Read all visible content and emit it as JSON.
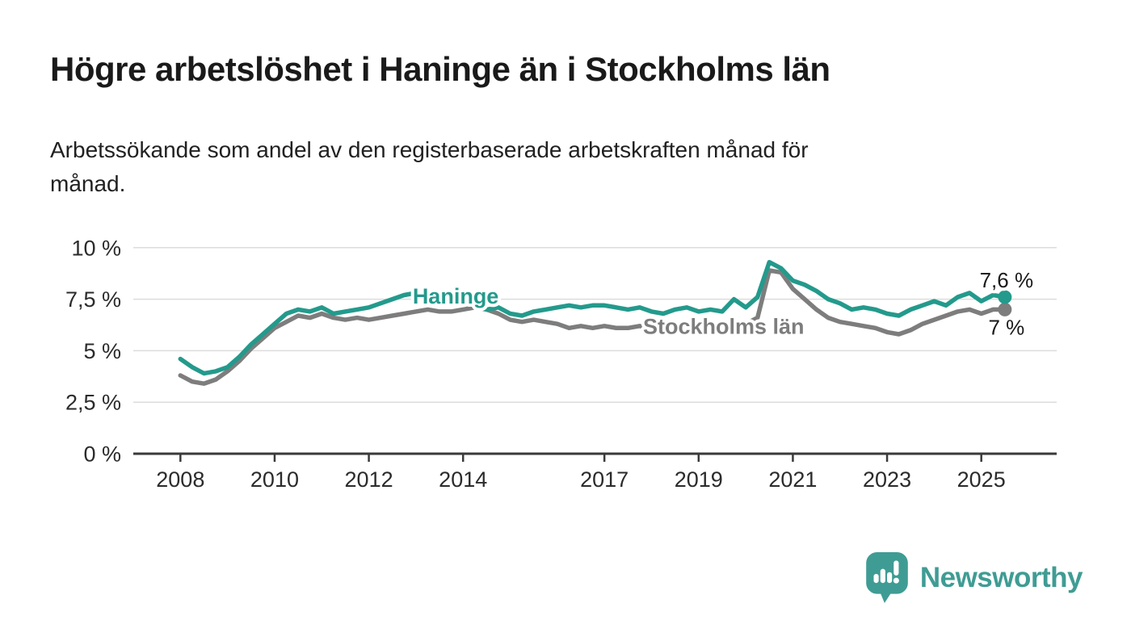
{
  "header": {
    "title": "Högre arbetslöshet i Haninge än i Stockholms län",
    "subtitle": "Arbetssökande som andel av den registerbaserade arbetskraften månad för månad."
  },
  "colors": {
    "haninge": "#239a8c",
    "stockholm": "#7d7d7d",
    "grid": "#dcdcdc",
    "axis": "#3a3a3a",
    "tick_text": "#2b2b2b",
    "annotation_text": "#1a1a1a",
    "brand": "#3f9c94"
  },
  "chart_data": {
    "type": "line",
    "x_start": 2008.0,
    "x_step": 0.25,
    "xlim": [
      2007.0,
      2026.6
    ],
    "ylim": [
      0,
      11.05
    ],
    "grid": "horizontal-only",
    "yticks": [
      {
        "value": 10,
        "label": "10 %"
      },
      {
        "value": 7.5,
        "label": "7,5 %"
      },
      {
        "value": 5,
        "label": "5 %"
      },
      {
        "value": 2.5,
        "label": "2,5 %"
      },
      {
        "value": 0,
        "label": "0 %"
      }
    ],
    "xticks": [
      {
        "year": 2008,
        "label": "2008"
      },
      {
        "year": 2010,
        "label": "2010"
      },
      {
        "year": 2012,
        "label": "2012"
      },
      {
        "year": 2014,
        "label": "2014"
      },
      {
        "year": 2017,
        "label": "2017"
      },
      {
        "year": 2019,
        "label": "2019"
      },
      {
        "year": 2021,
        "label": "2021"
      },
      {
        "year": 2023,
        "label": "2023"
      },
      {
        "year": 2025,
        "label": "2025"
      }
    ],
    "series": [
      {
        "name": "Stockholms län",
        "color": "#7d7d7d",
        "end_label": "7 %",
        "inline_label": {
          "x": 2017.82,
          "y": 5.82
        },
        "values": [
          3.8,
          3.5,
          3.4,
          3.6,
          4.0,
          4.5,
          5.1,
          5.6,
          6.1,
          6.4,
          6.7,
          6.6,
          6.8,
          6.6,
          6.5,
          6.6,
          6.5,
          6.6,
          6.7,
          6.8,
          6.9,
          7.0,
          6.9,
          6.9,
          7.0,
          7.1,
          7.0,
          6.8,
          6.5,
          6.4,
          6.5,
          6.4,
          6.3,
          6.1,
          6.2,
          6.1,
          6.2,
          6.1,
          6.1,
          6.2,
          6.0,
          6.1,
          6.1,
          6.2,
          6.2,
          6.3,
          6.2,
          6.3,
          6.3,
          6.6,
          8.9,
          8.8,
          8.0,
          7.5,
          7.0,
          6.6,
          6.4,
          6.3,
          6.2,
          6.1,
          5.9,
          5.8,
          6.0,
          6.3,
          6.5,
          6.7,
          6.9,
          7.0,
          6.8,
          7.0,
          7.0
        ]
      },
      {
        "name": "Haninge",
        "color": "#239a8c",
        "end_label": "7,6 %",
        "inline_label": {
          "x": 2012.93,
          "y": 7.28
        },
        "values": [
          4.6,
          4.2,
          3.9,
          4.0,
          4.2,
          4.7,
          5.3,
          5.8,
          6.3,
          6.8,
          7.0,
          6.9,
          7.1,
          6.8,
          6.9,
          7.0,
          7.1,
          7.3,
          7.5,
          7.7,
          7.8,
          7.7,
          7.5,
          7.4,
          7.3,
          7.2,
          7.0,
          7.1,
          6.8,
          6.7,
          6.9,
          7.0,
          7.1,
          7.2,
          7.1,
          7.2,
          7.2,
          7.1,
          7.0,
          7.1,
          6.9,
          6.8,
          7.0,
          7.1,
          6.9,
          7.0,
          6.9,
          7.5,
          7.1,
          7.6,
          9.3,
          9.0,
          8.4,
          8.2,
          7.9,
          7.5,
          7.3,
          7.0,
          7.1,
          7.0,
          6.8,
          6.7,
          7.0,
          7.2,
          7.4,
          7.2,
          7.6,
          7.8,
          7.4,
          7.7,
          7.6
        ]
      }
    ]
  },
  "footer": {
    "brand": "Newsworthy"
  }
}
